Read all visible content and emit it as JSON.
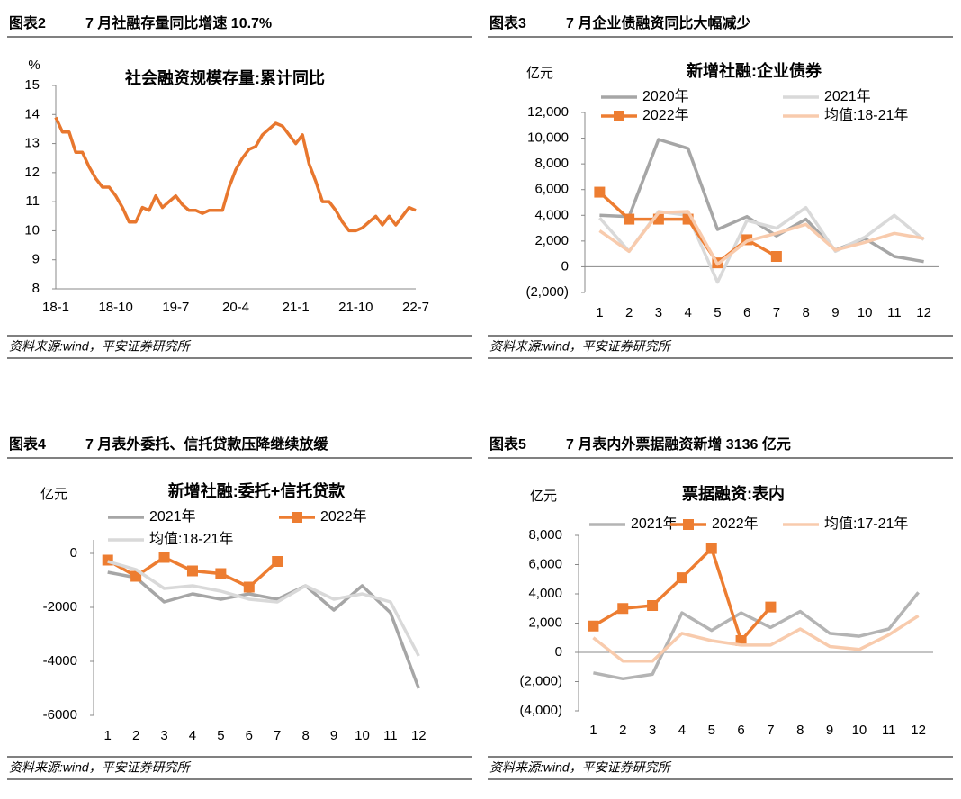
{
  "panels": [
    {
      "label": "图表2",
      "heading": "7 月社融存量同比增速 10.7%",
      "source": "资料来源:wind，平安证券研究所"
    },
    {
      "label": "图表3",
      "heading": "7 月企业债融资同比大幅减少",
      "source": "资料来源:wind，平安证券研究所"
    },
    {
      "label": "图表4",
      "heading": "7 月表外委托、信托贷款压降继续放缓",
      "source": "资料来源:wind，平安证券研究所"
    },
    {
      "label": "图表5",
      "heading": "7 月表内外票据融资新增 3136 亿元",
      "source": "资料来源:wind，平安证券研究所"
    }
  ],
  "chart_data": [
    {
      "type": "line",
      "title": "社会融资规模存量:累计同比",
      "y_label": "%",
      "categories": [
        "18-1",
        null,
        null,
        null,
        null,
        null,
        null,
        null,
        null,
        "18-10",
        null,
        null,
        null,
        null,
        null,
        null,
        null,
        null,
        "19-7",
        null,
        null,
        null,
        null,
        null,
        null,
        null,
        null,
        "20-4",
        null,
        null,
        null,
        null,
        null,
        null,
        null,
        null,
        "21-1",
        null,
        null,
        null,
        null,
        null,
        null,
        null,
        null,
        "21-10",
        null,
        null,
        null,
        null,
        null,
        null,
        null,
        null,
        "22-7"
      ],
      "series": [
        {
          "name": "社会融资规模存量:累计同比",
          "color": "#E8772E",
          "values": [
            13.9,
            13.4,
            13.4,
            12.7,
            12.7,
            12.2,
            11.8,
            11.5,
            11.5,
            11.2,
            10.8,
            10.3,
            10.3,
            10.8,
            10.7,
            11.2,
            10.8,
            11.0,
            11.2,
            10.9,
            10.7,
            10.7,
            10.6,
            10.7,
            10.7,
            10.7,
            11.5,
            12.1,
            12.5,
            12.8,
            12.9,
            13.3,
            13.5,
            13.7,
            13.6,
            13.3,
            13.0,
            13.3,
            12.3,
            11.7,
            11.0,
            11.0,
            10.7,
            10.3,
            10.0,
            10.0,
            10.1,
            10.3,
            10.5,
            10.2,
            10.5,
            10.2,
            10.5,
            10.8,
            10.7
          ]
        }
      ],
      "ylim": [
        8,
        15
      ],
      "yticks": [
        8,
        9,
        10,
        11,
        12,
        13,
        14,
        15
      ],
      "baseline": false,
      "legend": false
    },
    {
      "type": "line",
      "title": "新增社融:企业债券",
      "y_label": "亿元",
      "categories": [
        "1",
        "2",
        "3",
        "4",
        "5",
        "6",
        "7",
        "8",
        "9",
        "10",
        "11",
        "12"
      ],
      "series": [
        {
          "name": "2020年",
          "color": "#A6A6A6",
          "values": [
            4000,
            3900,
            9900,
            9200,
            2900,
            3900,
            2400,
            3700,
            1300,
            2200,
            800,
            400
          ]
        },
        {
          "name": "2021年",
          "color": "#D9D9D9",
          "values": [
            3800,
            1200,
            4300,
            4000,
            -1200,
            3600,
            3000,
            4600,
            1200,
            2300,
            4000,
            2100
          ]
        },
        {
          "name": "2022年",
          "color": "#ED7D31",
          "marker": "square",
          "values": [
            5800,
            3700,
            3700,
            3700,
            300,
            2100,
            800,
            null,
            null,
            null,
            null,
            null
          ]
        },
        {
          "name": "均值:18-21年",
          "color": "#F8CBAD",
          "values": [
            2800,
            1200,
            4200,
            4300,
            200,
            2000,
            2600,
            3300,
            1300,
            1900,
            2600,
            2200
          ]
        }
      ],
      "ylim": [
        -2000,
        12000
      ],
      "yticks": [
        {
          "value": -2000,
          "label": "(2,000)"
        },
        0,
        {
          "value": 2000,
          "label": "2,000"
        },
        {
          "value": 4000,
          "label": "4,000"
        },
        {
          "value": 6000,
          "label": "6,000"
        },
        {
          "value": 8000,
          "label": "8,000"
        },
        {
          "value": 10000,
          "label": "10,000"
        },
        {
          "value": 12000,
          "label": "12,000"
        }
      ],
      "baseline": true,
      "negative_label_color": "#E00000",
      "legend": true
    },
    {
      "type": "line",
      "title": "新增社融:委托+信托贷款",
      "y_label": "亿元",
      "categories": [
        "1",
        "2",
        "3",
        "4",
        "5",
        "6",
        "7",
        "8",
        "9",
        "10",
        "11",
        "12"
      ],
      "series": [
        {
          "name": "2021年",
          "color": "#A6A6A6",
          "values": [
            -700,
            -900,
            -1800,
            -1500,
            -1700,
            -1500,
            -1700,
            -1200,
            -2100,
            -1200,
            -2200,
            -5000
          ]
        },
        {
          "name": "2022年",
          "color": "#ED7D31",
          "marker": "square",
          "values": [
            -250,
            -850,
            -150,
            -650,
            -750,
            -1250,
            -300,
            null,
            null,
            null,
            null,
            null
          ]
        },
        {
          "name": "均值:18-21年",
          "color": "#D9D9D9",
          "values": [
            -300,
            -600,
            -1300,
            -1200,
            -1400,
            -1700,
            -1800,
            -1200,
            -1700,
            -1500,
            -1800,
            -3800
          ]
        }
      ],
      "ylim": [
        -6000,
        500
      ],
      "yticks": [
        -6000,
        -4000,
        -2000,
        0
      ],
      "baseline": false,
      "negative_label_color": "#E00000",
      "legend": true
    },
    {
      "type": "line",
      "title": "票据融资:表内",
      "y_label": "亿元",
      "categories": [
        "1",
        "2",
        "3",
        "4",
        "5",
        "6",
        "7",
        "8",
        "9",
        "10",
        "11",
        "12"
      ],
      "series": [
        {
          "name": "2021年",
          "color": "#B4B4B4",
          "values": [
            -1400,
            -1800,
            -1500,
            2700,
            1500,
            2700,
            1700,
            2800,
            1300,
            1100,
            1600,
            4100
          ]
        },
        {
          "name": "2022年",
          "color": "#ED7D31",
          "marker": "square",
          "values": [
            1800,
            3000,
            3200,
            5100,
            7100,
            800,
            3100,
            null,
            null,
            null,
            null,
            null
          ]
        },
        {
          "name": "均值:17-21年",
          "color": "#F8CBAD",
          "values": [
            1000,
            -600,
            -600,
            1300,
            800,
            500,
            500,
            1600,
            400,
            200,
            1200,
            2500
          ]
        }
      ],
      "ylim": [
        -4000,
        8000
      ],
      "yticks": [
        {
          "value": -4000,
          "label": "(4,000)"
        },
        {
          "value": -2000,
          "label": "(2,000)"
        },
        0,
        {
          "value": 2000,
          "label": "2,000"
        },
        {
          "value": 4000,
          "label": "4,000"
        },
        {
          "value": 6000,
          "label": "6,000"
        },
        {
          "value": 8000,
          "label": "8,000"
        }
      ],
      "baseline": true,
      "negative_label_color": "#E00000",
      "legend": true
    }
  ]
}
